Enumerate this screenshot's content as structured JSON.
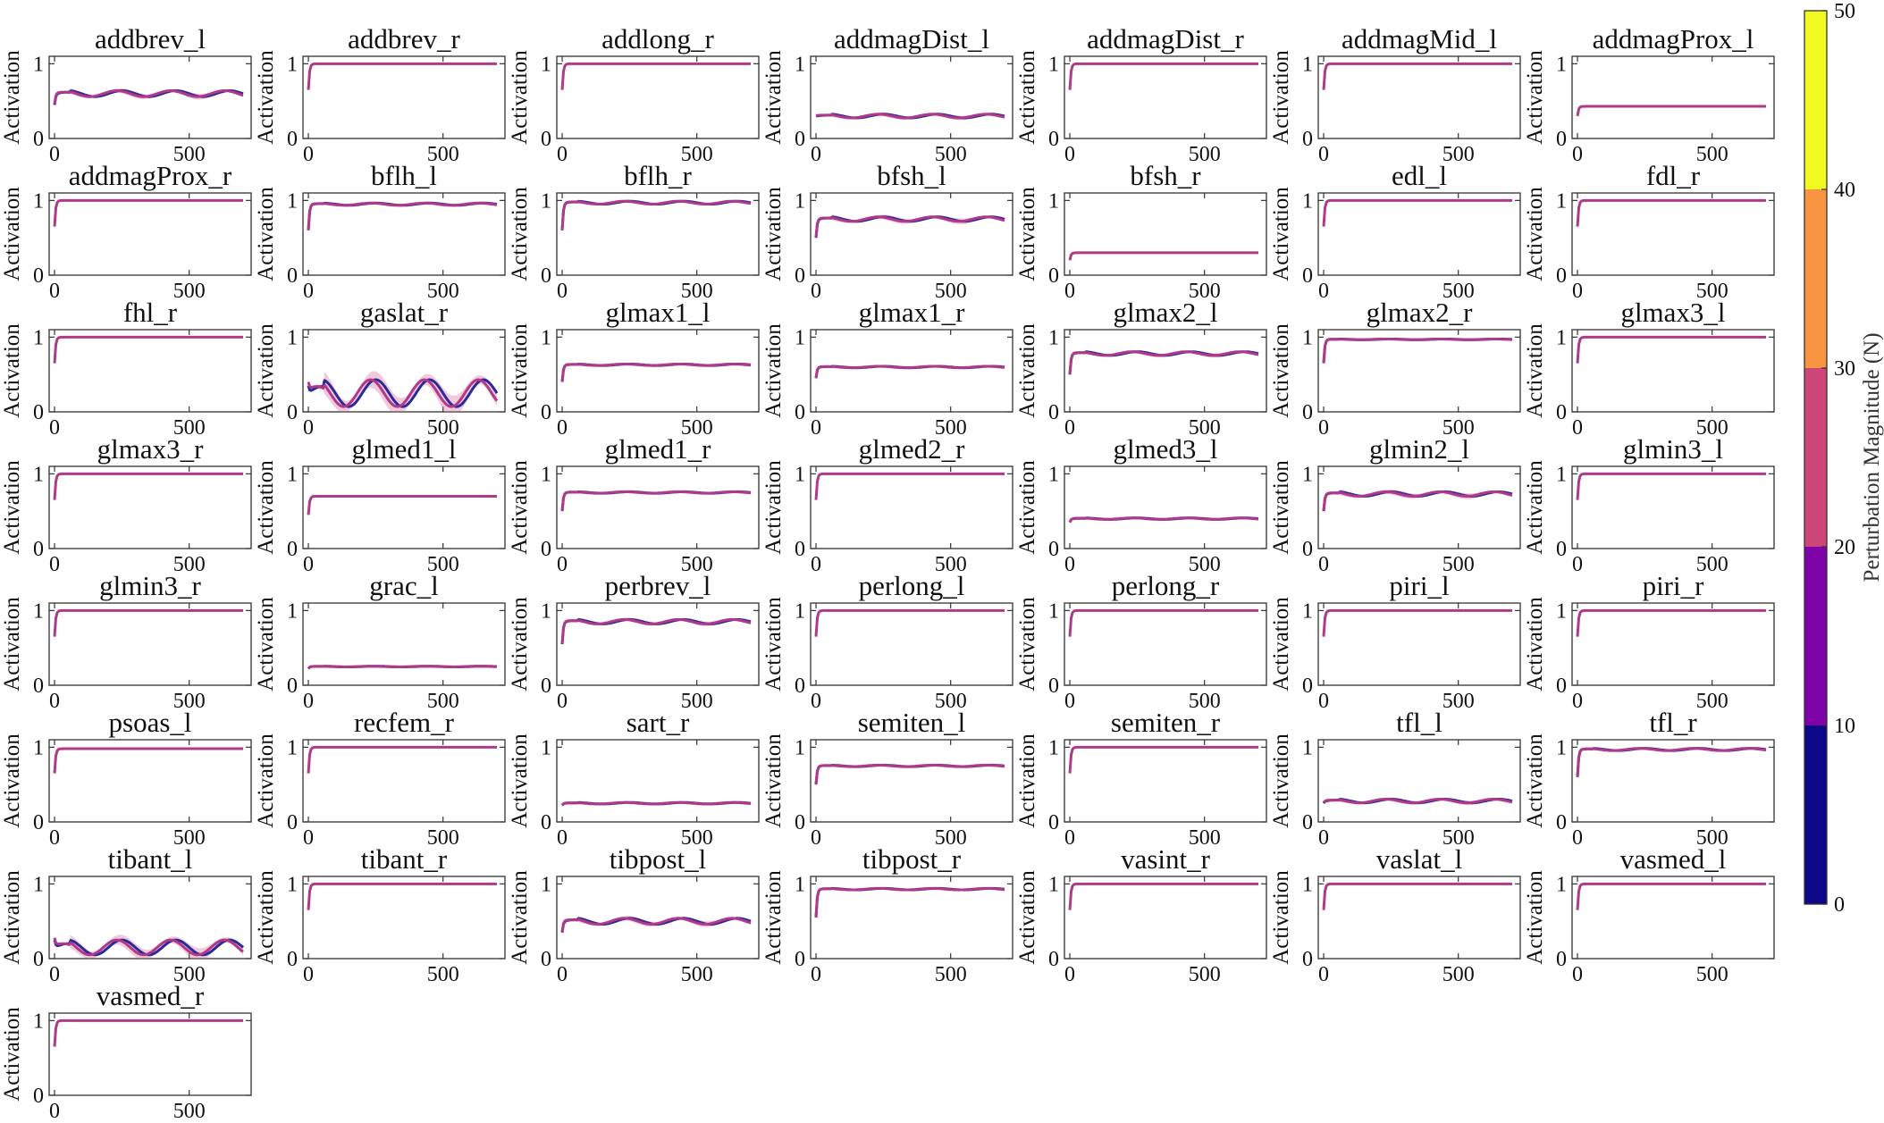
{
  "chart_data": {
    "type": "line",
    "ylabel": "Activation",
    "x_ticks": [
      0,
      500
    ],
    "y_ticks": [
      0,
      1
    ],
    "xlim": [
      -20,
      730
    ],
    "ylim": [
      0,
      1.1
    ],
    "colorbar": {
      "label": "Perturbation Magnitude (N)",
      "ticks": [
        0,
        10,
        20,
        30,
        40,
        50
      ],
      "bands": [
        {
          "from": 0,
          "to": 10,
          "color": "#0d0887"
        },
        {
          "from": 10,
          "to": 20,
          "color": "#7e03a8"
        },
        {
          "from": 20,
          "to": 30,
          "color": "#cc4778"
        },
        {
          "from": 30,
          "to": 40,
          "color": "#f89540"
        },
        {
          "from": 40,
          "to": 50,
          "color": "#f0f921"
        }
      ]
    },
    "series_colors": {
      "low": "#2a2a9a",
      "mid": "#b03a88",
      "band": "#d9609a"
    },
    "panels": [
      {
        "name": "addbrev_l",
        "level": 0.6,
        "start": 0.45,
        "osc": 0.04,
        "spread": 0.04
      },
      {
        "name": "addbrev_r",
        "level": 1.0,
        "start": 0.65,
        "osc": 0,
        "spread": 0
      },
      {
        "name": "addlong_r",
        "level": 1.0,
        "start": 0.65,
        "osc": 0,
        "spread": 0
      },
      {
        "name": "addmagDist_l",
        "level": 0.3,
        "start": 0.3,
        "osc": 0.025,
        "spread": 0.03
      },
      {
        "name": "addmagDist_r",
        "level": 1.0,
        "start": 0.65,
        "osc": 0,
        "spread": 0
      },
      {
        "name": "addmagMid_l",
        "level": 1.0,
        "start": 0.65,
        "osc": 0,
        "spread": 0
      },
      {
        "name": "addmagProx_l",
        "level": 0.43,
        "start": 0.3,
        "osc": 0,
        "spread": 0
      },
      {
        "name": "addmagProx_r",
        "level": 1.0,
        "start": 0.65,
        "osc": 0,
        "spread": 0
      },
      {
        "name": "bflh_l",
        "level": 0.95,
        "start": 0.6,
        "osc": 0.015,
        "spread": 0.01
      },
      {
        "name": "bflh_r",
        "level": 0.97,
        "start": 0.6,
        "osc": 0.02,
        "spread": 0.02
      },
      {
        "name": "bfsh_l",
        "level": 0.75,
        "start": 0.5,
        "osc": 0.03,
        "spread": 0.04
      },
      {
        "name": "bfsh_r",
        "level": 0.3,
        "start": 0.2,
        "osc": 0,
        "spread": 0
      },
      {
        "name": "edl_l",
        "level": 1.0,
        "start": 0.65,
        "osc": 0,
        "spread": 0
      },
      {
        "name": "fdl_r",
        "level": 1.0,
        "start": 0.65,
        "osc": 0,
        "spread": 0
      },
      {
        "name": "fhl_r",
        "level": 1.0,
        "start": 0.65,
        "osc": 0,
        "spread": 0
      },
      {
        "name": "gaslat_r",
        "level": 0.25,
        "start": 0.35,
        "osc": 0.18,
        "spread": 0.15
      },
      {
        "name": "glmax1_l",
        "level": 0.63,
        "start": 0.4,
        "osc": 0.01,
        "spread": 0.01
      },
      {
        "name": "glmax1_r",
        "level": 0.6,
        "start": 0.45,
        "osc": 0.01,
        "spread": 0.01
      },
      {
        "name": "glmax2_l",
        "level": 0.78,
        "start": 0.5,
        "osc": 0.025,
        "spread": 0.03
      },
      {
        "name": "glmax2_r",
        "level": 0.97,
        "start": 0.65,
        "osc": 0.005,
        "spread": 0
      },
      {
        "name": "glmax3_l",
        "level": 1.0,
        "start": 0.65,
        "osc": 0,
        "spread": 0
      },
      {
        "name": "glmax3_r",
        "level": 1.0,
        "start": 0.65,
        "osc": 0,
        "spread": 0
      },
      {
        "name": "glmed1_l",
        "level": 0.7,
        "start": 0.45,
        "osc": 0,
        "spread": 0
      },
      {
        "name": "glmed1_r",
        "level": 0.75,
        "start": 0.5,
        "osc": 0.01,
        "spread": 0.01
      },
      {
        "name": "glmed2_r",
        "level": 1.0,
        "start": 0.65,
        "osc": 0,
        "spread": 0
      },
      {
        "name": "glmed3_l",
        "level": 0.4,
        "start": 0.35,
        "osc": 0.01,
        "spread": 0.01
      },
      {
        "name": "glmin2_l",
        "level": 0.73,
        "start": 0.5,
        "osc": 0.03,
        "spread": 0.04
      },
      {
        "name": "glmin3_l",
        "level": 1.0,
        "start": 0.65,
        "osc": 0,
        "spread": 0
      },
      {
        "name": "glmin3_r",
        "level": 1.0,
        "start": 0.65,
        "osc": 0,
        "spread": 0
      },
      {
        "name": "grac_l",
        "level": 0.25,
        "start": 0.22,
        "osc": 0.005,
        "spread": 0
      },
      {
        "name": "perbrev_l",
        "level": 0.85,
        "start": 0.55,
        "osc": 0.03,
        "spread": 0.03
      },
      {
        "name": "perlong_l",
        "level": 1.0,
        "start": 0.65,
        "osc": 0,
        "spread": 0
      },
      {
        "name": "perlong_r",
        "level": 1.0,
        "start": 0.65,
        "osc": 0,
        "spread": 0
      },
      {
        "name": "piri_l",
        "level": 1.0,
        "start": 0.65,
        "osc": 0,
        "spread": 0
      },
      {
        "name": "piri_r",
        "level": 1.0,
        "start": 0.65,
        "osc": 0,
        "spread": 0
      },
      {
        "name": "psoas_l",
        "level": 0.98,
        "start": 0.65,
        "osc": 0,
        "spread": 0
      },
      {
        "name": "recfem_r",
        "level": 1.0,
        "start": 0.65,
        "osc": 0,
        "spread": 0
      },
      {
        "name": "sart_r",
        "level": 0.25,
        "start": 0.22,
        "osc": 0.01,
        "spread": 0.01
      },
      {
        "name": "semiten_l",
        "level": 0.75,
        "start": 0.5,
        "osc": 0.01,
        "spread": 0
      },
      {
        "name": "semiten_r",
        "level": 1.0,
        "start": 0.65,
        "osc": 0,
        "spread": 0
      },
      {
        "name": "tfl_l",
        "level": 0.28,
        "start": 0.25,
        "osc": 0.025,
        "spread": 0.03
      },
      {
        "name": "tfl_r",
        "level": 0.97,
        "start": 0.6,
        "osc": 0.015,
        "spread": 0.01
      },
      {
        "name": "tibant_l",
        "level": 0.15,
        "start": 0.25,
        "osc": 0.1,
        "spread": 0.09
      },
      {
        "name": "tibant_r",
        "level": 1.0,
        "start": 0.65,
        "osc": 0,
        "spread": 0
      },
      {
        "name": "tibpost_l",
        "level": 0.5,
        "start": 0.35,
        "osc": 0.04,
        "spread": 0.04
      },
      {
        "name": "tibpost_r",
        "level": 0.93,
        "start": 0.55,
        "osc": 0.01,
        "spread": 0.01
      },
      {
        "name": "vasint_r",
        "level": 1.0,
        "start": 0.65,
        "osc": 0,
        "spread": 0
      },
      {
        "name": "vaslat_l",
        "level": 1.0,
        "start": 0.65,
        "osc": 0,
        "spread": 0
      },
      {
        "name": "vasmed_l",
        "level": 1.0,
        "start": 0.65,
        "osc": 0,
        "spread": 0
      },
      {
        "name": "vasmed_r",
        "level": 1.0,
        "start": 0.65,
        "osc": 0,
        "spread": 0
      }
    ]
  }
}
